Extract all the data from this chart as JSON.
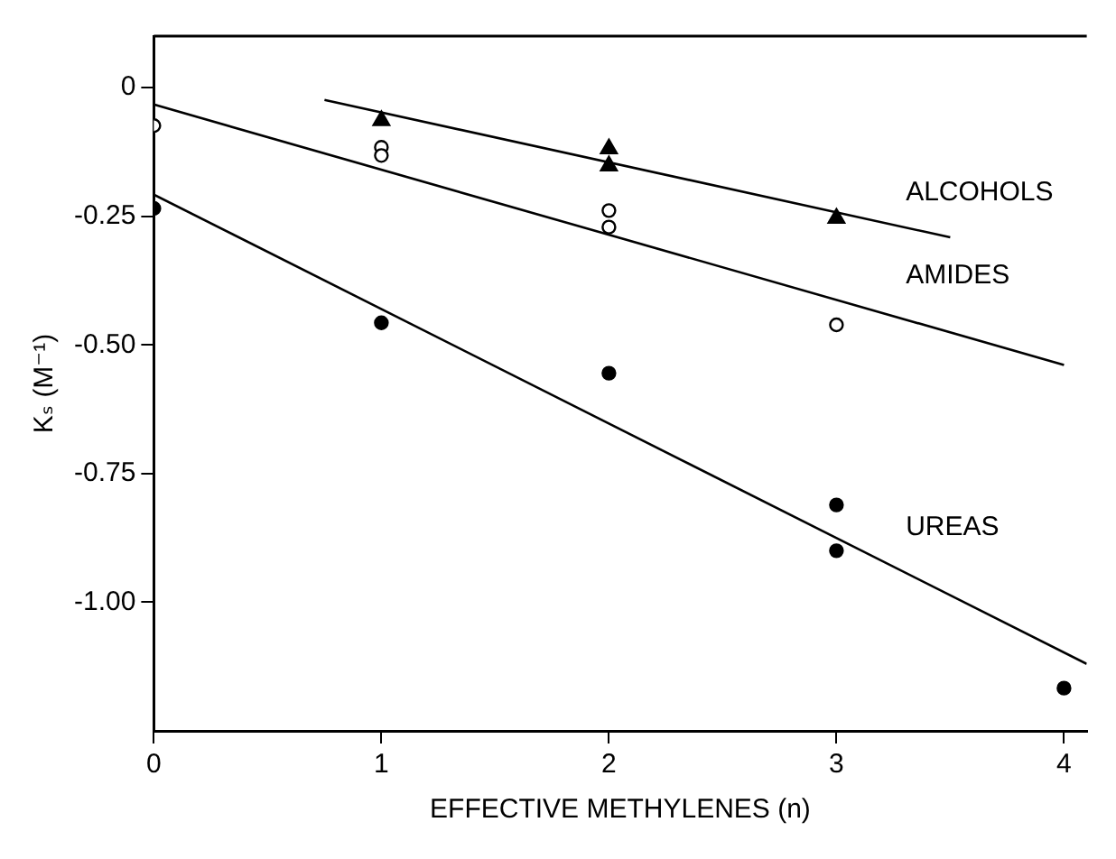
{
  "chart_data": {
    "type": "scatter",
    "xlabel": "EFFECTIVE METHYLENES (n)",
    "ylabel": "Kₛ (M⁻¹)",
    "xlim": [
      0,
      4.1
    ],
    "ylim": [
      -1.25,
      0.1
    ],
    "xticks": [
      0,
      1,
      2,
      3,
      4
    ],
    "yticks": [
      0,
      -0.25,
      {
        "value": -0.5,
        "label": "-0.50"
      },
      {
        "value": -0.75,
        "label": "-0.75"
      },
      {
        "value": -1,
        "label": "-1.00"
      }
    ],
    "grid": false,
    "legend": false,
    "series": [
      {
        "marker": "triangle",
        "color": "#000000",
        "x": [
          1,
          2,
          2,
          3
        ],
        "values": [
          -0.064,
          -0.119,
          -0.152,
          -0.254
        ]
      },
      {
        "marker": "circle",
        "color": "#ffffff",
        "x": [
          0,
          1,
          1,
          2,
          2,
          3
        ],
        "values": [
          -0.074,
          -0.116,
          -0.132,
          -0.239,
          -0.271,
          -0.461
        ]
      },
      {
        "marker": "circle",
        "color": "#000000",
        "x": [
          0,
          1,
          2,
          3,
          3,
          4
        ],
        "values": [
          -0.235,
          -0.457,
          -0.555,
          -0.811,
          -0.9,
          -1.167
        ]
      },
      {
        "type": "line",
        "marker": "none",
        "line_style": "solid",
        "color": "#000000",
        "x": [
          0.75,
          3.5
        ],
        "values": [
          -0.024,
          -0.291
        ]
      },
      {
        "type": "line",
        "marker": "none",
        "line_style": "solid",
        "color": "#000000",
        "x": [
          0,
          4
        ],
        "values": [
          -0.033,
          -0.539
        ]
      },
      {
        "type": "line",
        "marker": "none",
        "line_style": "solid",
        "color": "#000000",
        "x": [
          0,
          4.1
        ],
        "values": [
          -0.208,
          -1.12
        ]
      }
    ],
    "annotations": [
      "ALCOHOLS",
      "AMIDES",
      "UREAS"
    ]
  }
}
